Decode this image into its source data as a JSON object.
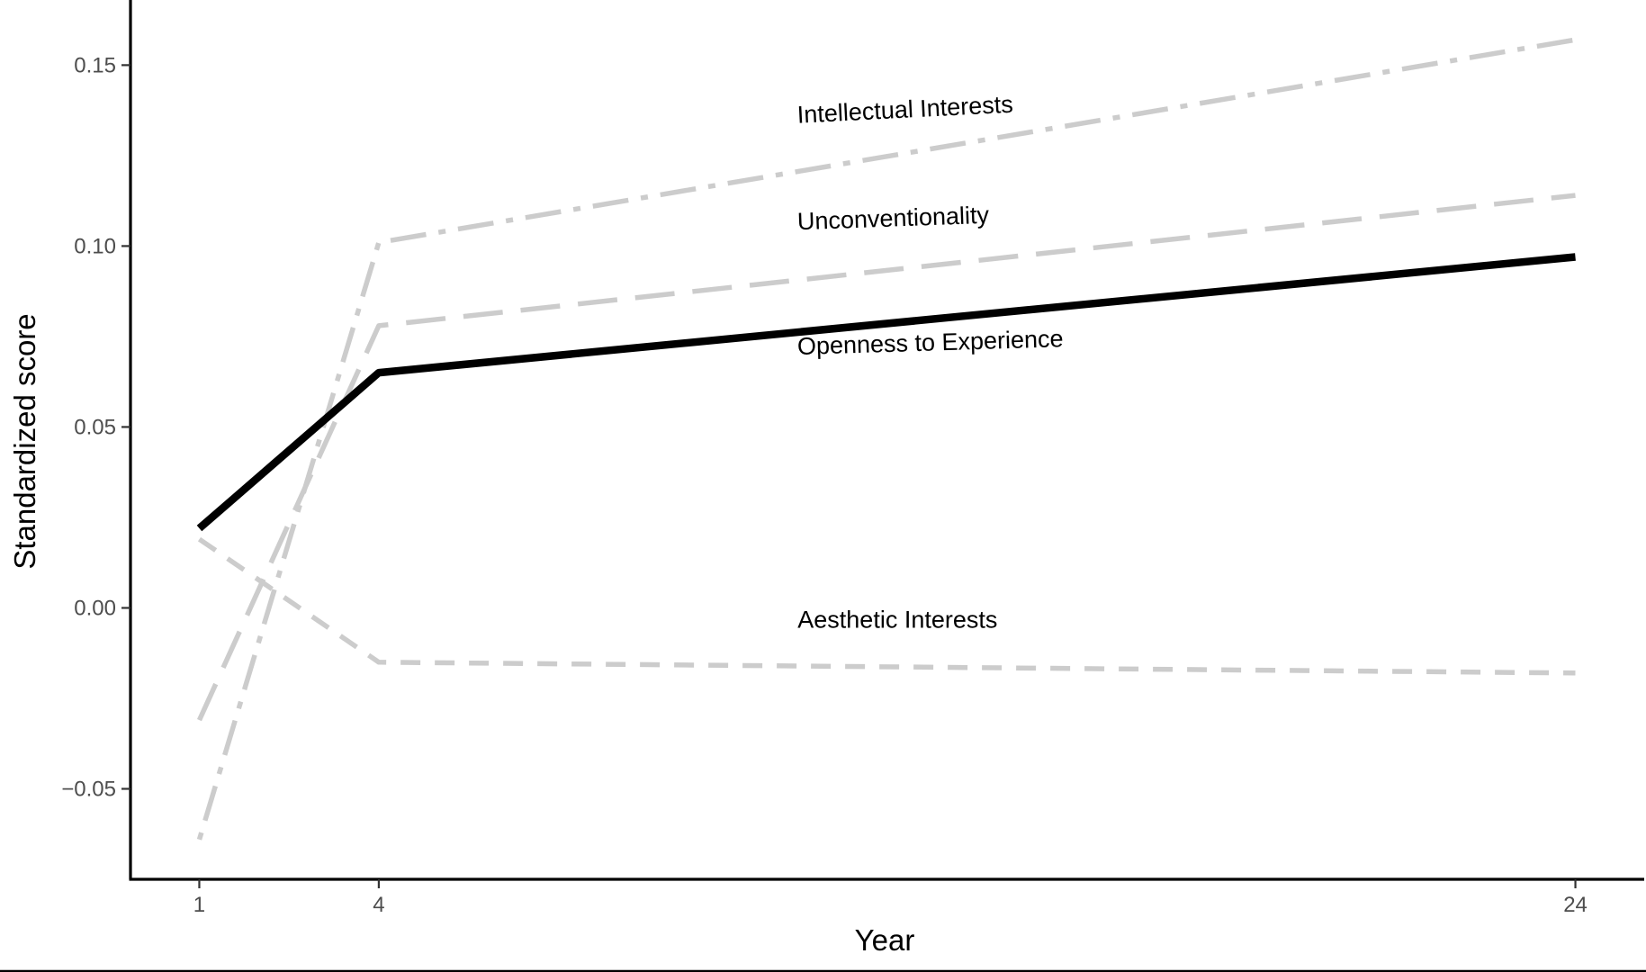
{
  "chart_data": {
    "type": "line",
    "title": "",
    "xlabel": "Year",
    "ylabel": "Standardized score",
    "x": [
      1,
      4,
      24
    ],
    "xticks": [
      1,
      4,
      24
    ],
    "xtick_labels": [
      "1",
      "4",
      "24"
    ],
    "xlim": [
      -0.15,
      25.15
    ],
    "yticks": [
      -0.05,
      0.0,
      0.05,
      0.1,
      0.15
    ],
    "ytick_labels": [
      "−0.05",
      "0.00",
      "0.05",
      "0.10",
      "0.15"
    ],
    "ylim": [
      -0.075,
      0.168
    ],
    "grid": false,
    "legend": "none",
    "series": [
      {
        "name": "Openness to Experience",
        "label": "Openness to Experience",
        "values": [
          0.022,
          0.065,
          0.097
        ],
        "color": "#000000",
        "dash": "solid",
        "emphasis": true,
        "label_at": [
          11.0,
          0.07
        ],
        "label_angle": -0.03
      },
      {
        "name": "Unconventionality",
        "label": "Unconventionality",
        "values": [
          -0.031,
          0.078,
          0.114
        ],
        "color": "#cccccc",
        "dash": "longdash",
        "emphasis": false,
        "label_at": [
          11.0,
          0.1045
        ],
        "label_angle": -0.035
      },
      {
        "name": "Intellectual Interests",
        "label": "Intellectual Interests",
        "values": [
          -0.064,
          0.101,
          0.157
        ],
        "color": "#cccccc",
        "dash": "dotdash",
        "emphasis": false,
        "label_at": [
          11.0,
          0.134
        ],
        "label_angle": -0.05
      },
      {
        "name": "Aesthetic Interests",
        "label": "Aesthetic Interests",
        "values": [
          0.019,
          -0.015,
          -0.018
        ],
        "color": "#cccccc",
        "dash": "dashed",
        "emphasis": false,
        "label_at": [
          11.0,
          -0.0055
        ],
        "label_angle": 0
      }
    ]
  }
}
